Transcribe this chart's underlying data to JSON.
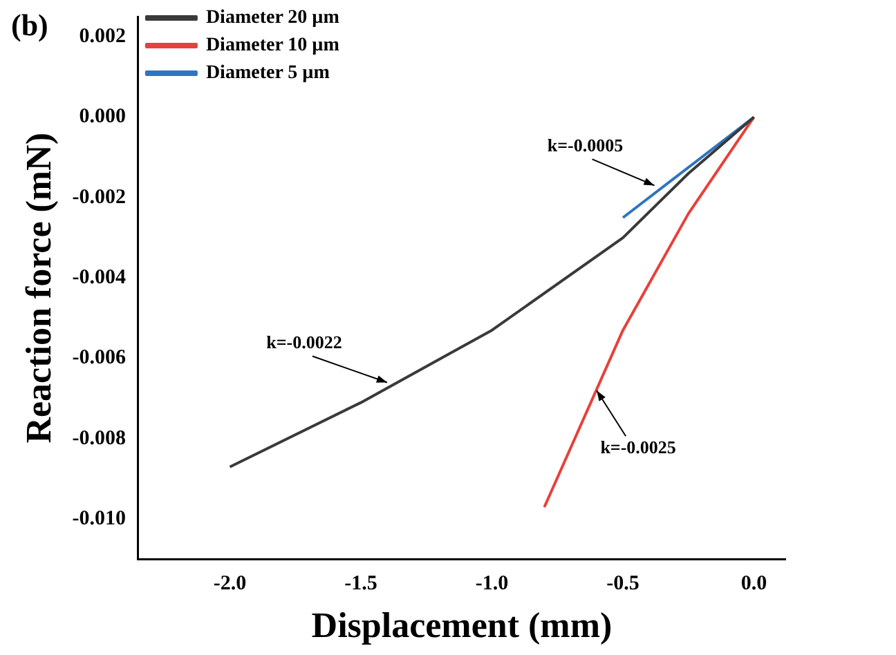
{
  "chart_data": {
    "type": "line",
    "title": "(b)",
    "xlabel": "Displacement (mm)",
    "ylabel": "Reaction force (mN)",
    "xlim": [
      -2.35,
      0.12
    ],
    "xticks": [
      {
        "value": -2,
        "label": "-2.0"
      },
      {
        "value": -1.5,
        "label": "-1.5"
      },
      {
        "value": -1,
        "label": "-1.0"
      },
      {
        "value": -0.5,
        "label": "-0.5"
      },
      {
        "value": 0,
        "label": "0.0"
      }
    ],
    "ylim": [
      -0.011,
      0.0025
    ],
    "yticks": [
      {
        "value": 0.002,
        "label": "0.002"
      },
      {
        "value": 0,
        "label": "0.000"
      },
      {
        "value": -0.002,
        "label": "-0.002"
      },
      {
        "value": -0.004,
        "label": "-0.004"
      },
      {
        "value": -0.006,
        "label": "-0.006"
      },
      {
        "value": -0.008,
        "label": "-0.008"
      },
      {
        "value": -0.01,
        "label": "-0.010"
      }
    ],
    "grid": false,
    "legend": "top left",
    "marker": "none",
    "line_style": "solid",
    "series": [
      {
        "name": "Diameter 20 µm",
        "color": "#3a3a3a",
        "x": [
          -2,
          -1.5,
          -1,
          -0.5,
          -0.25,
          0
        ],
        "values": [
          -0.0087,
          -0.0071,
          -0.0053,
          -0.003,
          -0.0014,
          0
        ]
      },
      {
        "name": "Diameter 10 µm",
        "color": "#e8403a",
        "x": [
          -0.8,
          -0.5,
          -0.25,
          0
        ],
        "values": [
          -0.0097,
          -0.0053,
          -0.0024,
          0
        ]
      },
      {
        "name": "Diameter 5 µm",
        "color": "#2f74c0",
        "x": [
          -0.5,
          0
        ],
        "values": [
          -0.0025,
          0
        ]
      }
    ],
    "annotations": [
      {
        "text": "k=-0.0022",
        "x": -1.4,
        "y": -0.0066
      },
      {
        "text": "k=-0.0005",
        "x": -0.38,
        "y": -0.0017
      },
      {
        "text": "k=-0.0025",
        "x": -0.6,
        "y": -0.0068
      }
    ]
  }
}
